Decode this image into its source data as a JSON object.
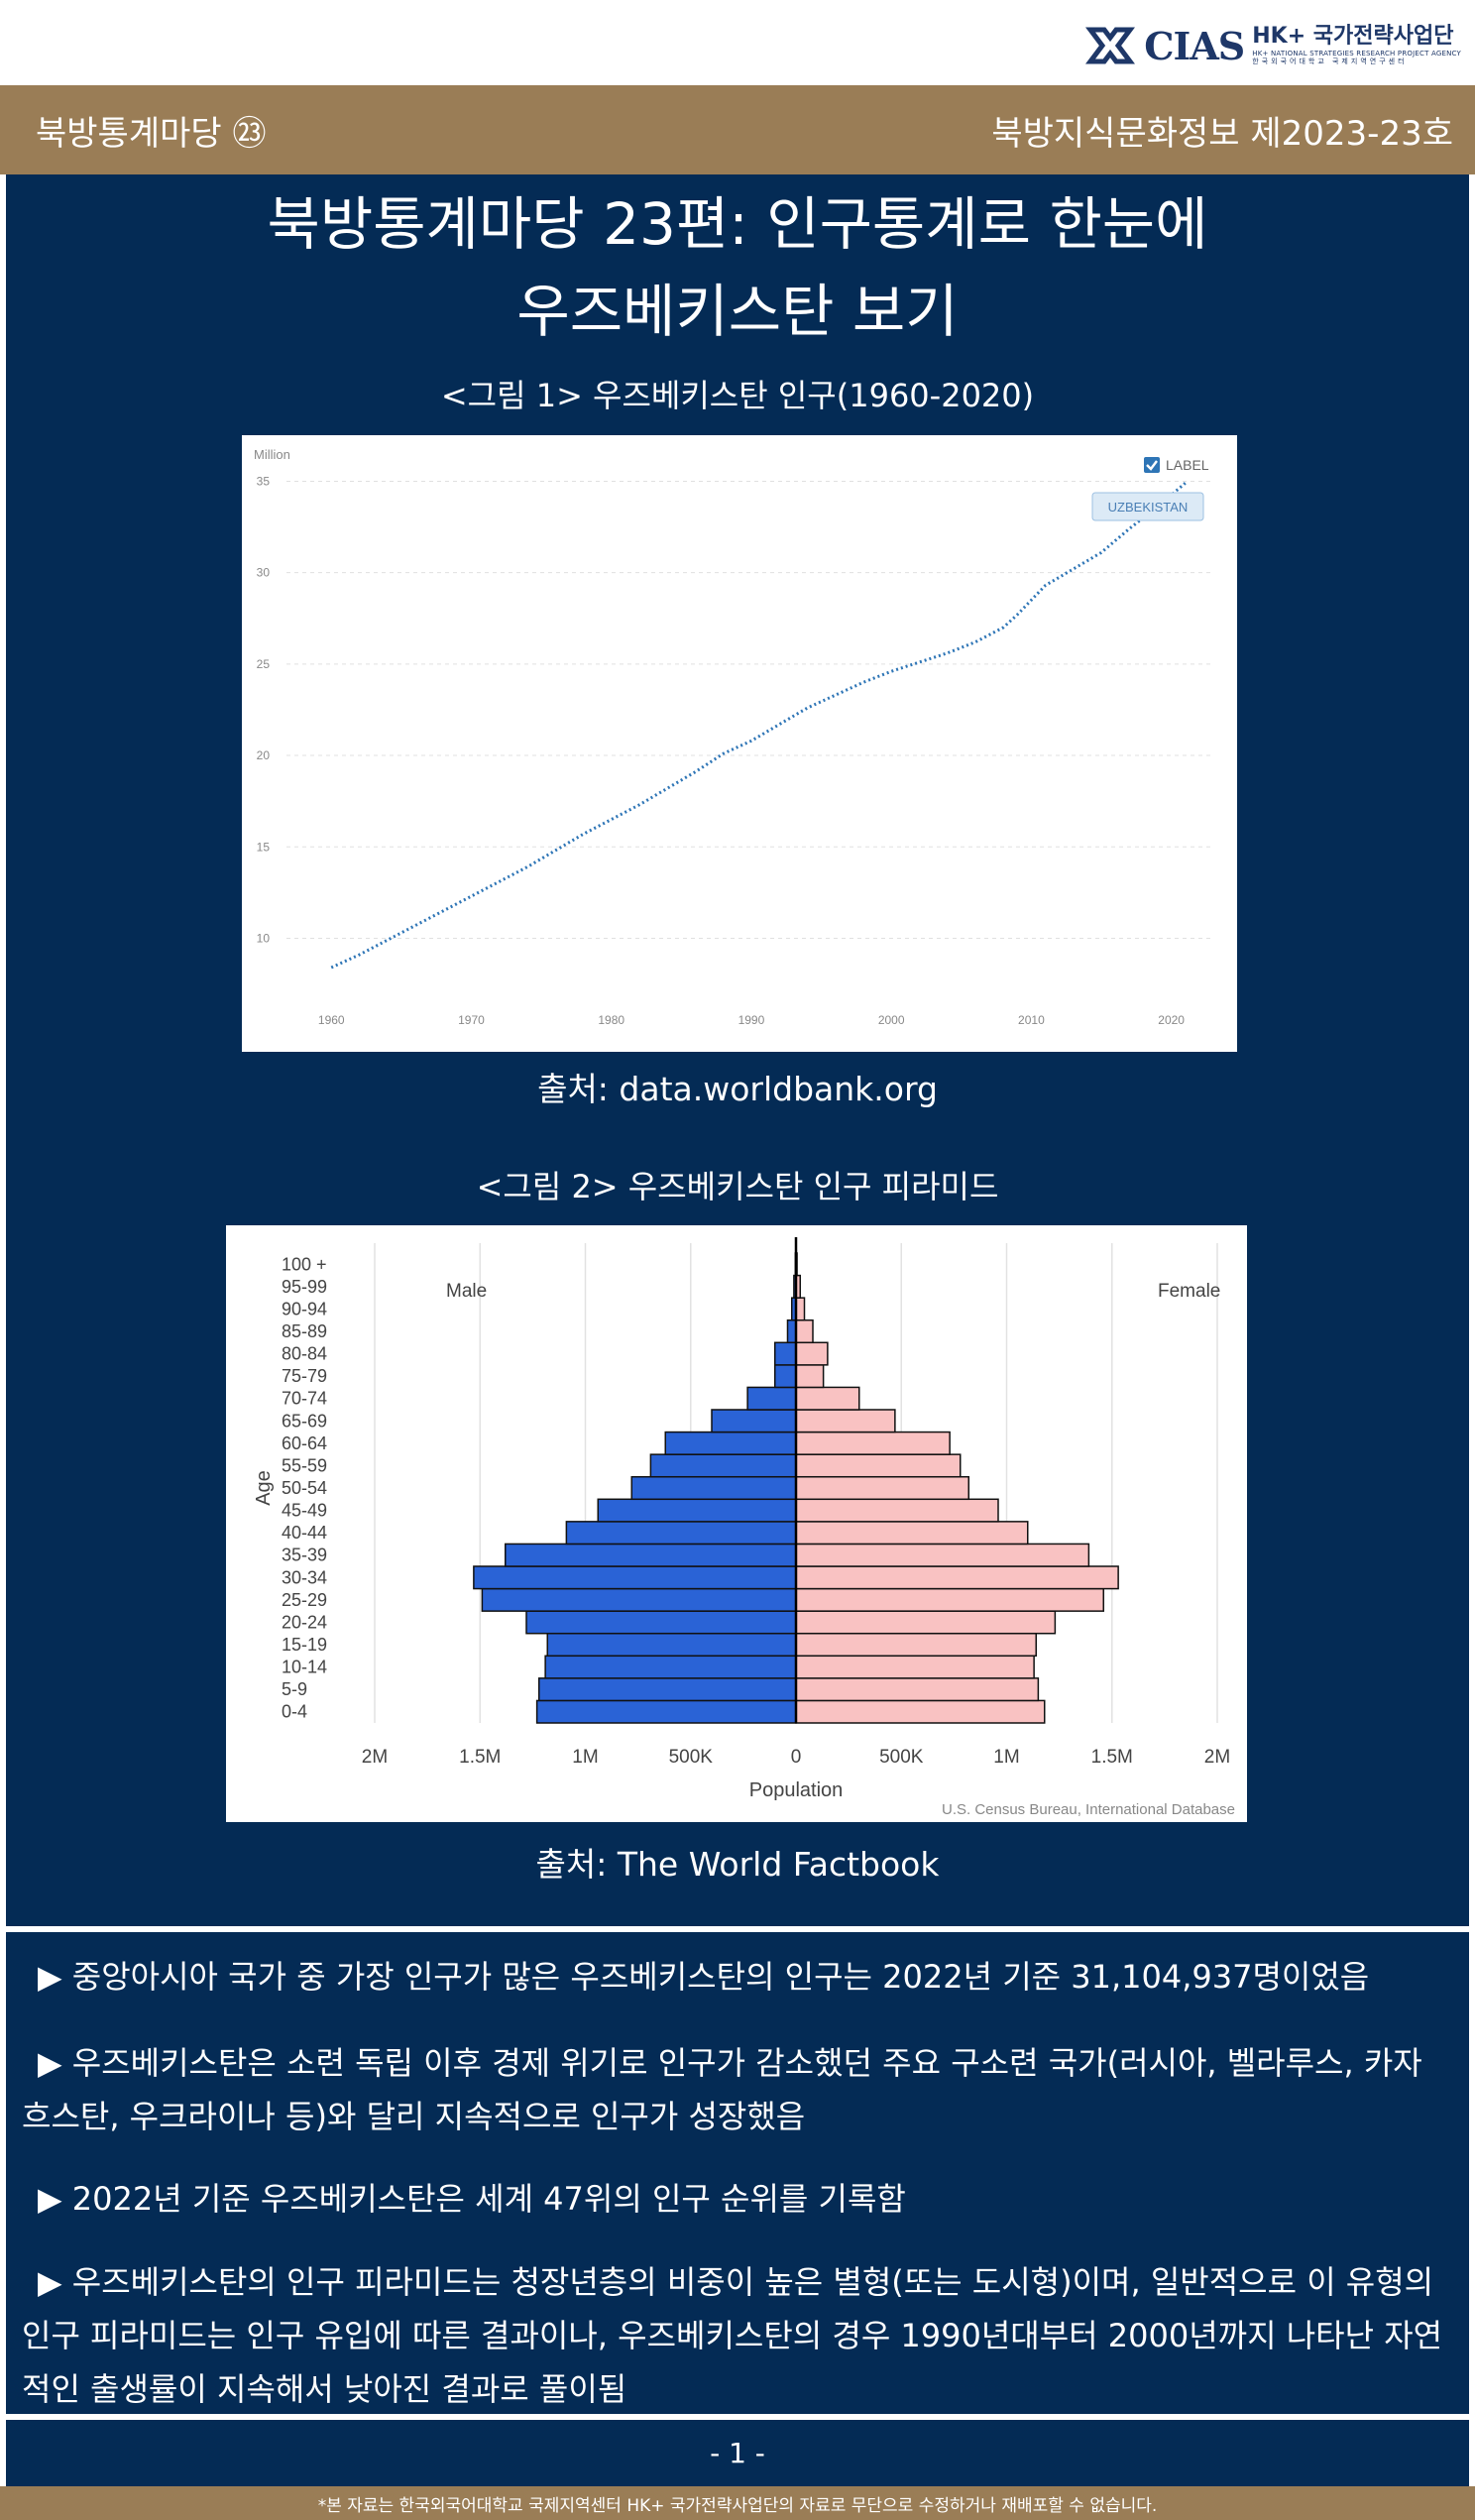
{
  "logo": {
    "mark_text": "CIAS",
    "hk": "HK+ 국가전략사업단",
    "sub": "HK+ NATIONAL STRATEGIES RESEARCH PROJECT AGENCY",
    "sub2": "한국외국어대학교 국제지역연구센터"
  },
  "band": {
    "left": "북방통계마당 ㉓",
    "right": "북방지식문화정보 제2023-23호"
  },
  "title": {
    "line1": "북방통계마당 23편: 인구통계로 한눈에",
    "line2": "우즈베키스탄 보기"
  },
  "figure1": {
    "caption": "<그림 1> 우즈베키스탄 인구(1960-2020)",
    "source": "출처: data.worldbank.org"
  },
  "figure2": {
    "caption": "<그림 2> 우즈베키스탄 인구 피라미드",
    "source": "출처: The World Factbook"
  },
  "chart_data": [
    {
      "type": "line",
      "ylabel": "Million",
      "legend_checkbox": "LABEL",
      "series": [
        {
          "name": "UZBEKISTAN",
          "x": [
            1960,
            1962,
            1964,
            1966,
            1968,
            1970,
            1972,
            1974,
            1976,
            1978,
            1980,
            1982,
            1984,
            1986,
            1988,
            1990,
            1992,
            1994,
            1996,
            1998,
            2000,
            2002,
            2004,
            2006,
            2008,
            2009,
            2011,
            2013,
            2015,
            2017,
            2019,
            2021
          ],
          "values": [
            8.4,
            9.1,
            9.9,
            10.7,
            11.5,
            12.3,
            13.1,
            13.9,
            14.8,
            15.7,
            16.5,
            17.3,
            18.2,
            19.1,
            20.1,
            20.8,
            21.7,
            22.6,
            23.3,
            24.0,
            24.6,
            25.1,
            25.6,
            26.2,
            27.0,
            27.7,
            29.3,
            30.2,
            31.1,
            32.4,
            33.6,
            34.9
          ]
        }
      ],
      "xticks": [
        1960,
        1970,
        1980,
        1990,
        2000,
        2010,
        2020
      ],
      "yticks": [
        10,
        15,
        20,
        25,
        30,
        35
      ],
      "xlim": [
        1958,
        2023
      ],
      "ylim": [
        6.5,
        36
      ],
      "grid": true,
      "legend": "top-right"
    },
    {
      "type": "bar",
      "orientation": "horizontal-pyramid",
      "categories": [
        "0-4",
        "5-9",
        "10-14",
        "15-19",
        "20-24",
        "25-29",
        "30-34",
        "35-39",
        "40-44",
        "45-49",
        "50-54",
        "55-59",
        "60-64",
        "65-69",
        "70-74",
        "75-79",
        "80-84",
        "85-89",
        "90-94",
        "95-99",
        "100 +"
      ],
      "series": [
        {
          "name": "Male",
          "color": "#2a63d6",
          "values": [
            1230000,
            1220000,
            1190000,
            1180000,
            1280000,
            1490000,
            1530000,
            1380000,
            1090000,
            940000,
            780000,
            690000,
            620000,
            400000,
            230000,
            100000,
            100000,
            40000,
            20000,
            10000,
            3000
          ]
        },
        {
          "name": "Female",
          "color": "#f9c2c2",
          "values": [
            1180000,
            1150000,
            1130000,
            1140000,
            1230000,
            1460000,
            1530000,
            1390000,
            1100000,
            960000,
            820000,
            780000,
            730000,
            470000,
            300000,
            130000,
            150000,
            80000,
            40000,
            20000,
            5000
          ]
        }
      ],
      "xticks": [
        "2M",
        "1.5M",
        "1M",
        "500K",
        "0",
        "500K",
        "1M",
        "1.5M",
        "2M"
      ],
      "xlim": [
        -2000000,
        2000000
      ],
      "xlabel": "Population",
      "ylabel": "Age",
      "labels": {
        "left": "Male",
        "right": "Female"
      },
      "source": "U.S. Census Bureau, International Database",
      "grid": true
    }
  ],
  "bullets": [
    "▶ 중앙아시아 국가 중 가장 인구가 많은 우즈베키스탄의 인구는 2022년 기준 31,104,937명이었음",
    "▶ 우즈베키스탄은 소련 독립 이후 경제 위기로 인구가 감소했던 주요 구소련 국가(러시아, 벨라루스, 카자흐스탄, 우크라이나 등)와 달리 지속적으로 인구가 성장했음",
    "▶ 2022년 기준 우즈베키스탄은 세계 47위의 인구 순위를 기록함",
    "▶ 우즈베키스탄의 인구 피라미드는 청장년층의 비중이 높은 별형(또는 도시형)이며, 일반적으로 이 유형의 인구 피라미드는 인구 유입에 따른 결과이나, 우즈베키스탄의 경우 1990년대부터 2000년까지 나타난 자연적인 출생률이 지속해서 낮아진 결과로 풀이됨"
  ],
  "page_number": "- 1 -",
  "footer": "*본 자료는 한국외국어대학교 국제지역센터 HK+ 국가전략사업단의 자료로 무단으로 수정하거나 재배포할 수 없습니다."
}
